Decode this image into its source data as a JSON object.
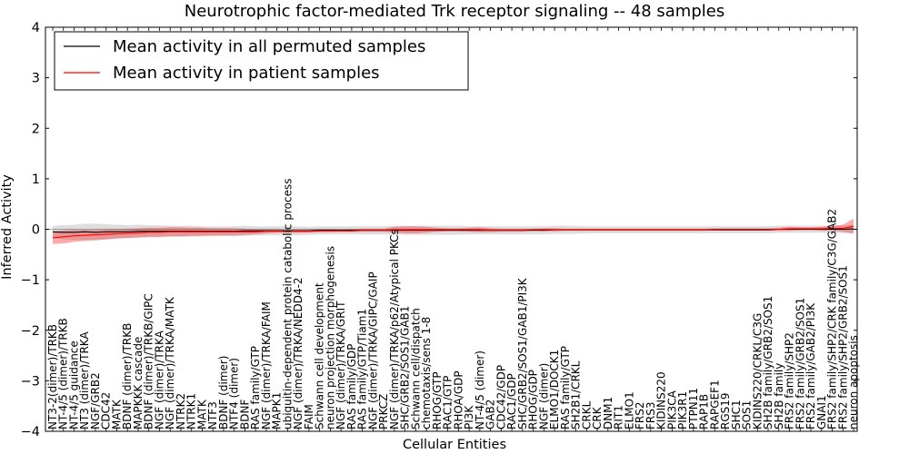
{
  "chart_data": {
    "type": "line",
    "title": "Neurotrophic factor-mediated Trk receptor signaling -- 48 samples",
    "xlabel": "Cellular Entities",
    "ylabel": "Inferred Activity",
    "ylim": [
      -4,
      4
    ],
    "yticks": [
      -4,
      -3,
      -2,
      -1,
      0,
      1,
      2,
      3,
      4
    ],
    "legend": {
      "placement": "top-left"
    },
    "categories": [
      "NT3-2(dimer)/TRKB",
      "NT-4/5 (dimer)/TRKB",
      "NT-4/5 guidance",
      "NT3 (dimer)/TRKA",
      "NGF/GRB2",
      "CDC42",
      "MATK",
      "BDNF (dimer)/TRKB",
      "MAPKKK cascade",
      "BDNF (dimer)/TRKB/GIPC",
      "NGF (dimer)/TRKA",
      "NGF (dimer)/TRKA/MATK",
      "NTRK2",
      "NTRK1",
      "MATK",
      "NTF3",
      "BDNF (dimer)",
      "NTF4 (dimer)",
      "BDNF",
      "RAS family/GTP",
      "NGF (dimer)/TRKA/FAIM",
      "MAPK1",
      "ubiquitin-dependent protein catabolic process",
      "NGF (dimer)/TRKA/NEDD4-2",
      "FAIM",
      "Schwann cell development",
      "neuron projection morphogenesis",
      "NGF (dimer)/TRKA/GRIT",
      "RAS family/GDP",
      "RAS family/GTP/Tiam1",
      "NGF (dimer)/TRKA/GIPC/GAIP",
      "PRKCZ",
      "NGF (dimer)/TRKA/p62/Atypical PKCs",
      "SHC/GRB2/SOS1/GAB1",
      "Schwann cell/dispatch",
      "chemotaxis/sens 1-8",
      "RHOG/GTP",
      "RAC1/GTP",
      "RHOA/GDP",
      "PI3K",
      "NT-4/5 (dimer)",
      "GAB2",
      "CDC42/GDP",
      "RAC1/GDP",
      "SHC/GRB2/SOS1/GAB1/PI3K",
      "RHOG/GDP",
      "NGF (dimer)",
      "ELMO1/DOCK1",
      "RAS family/GTP",
      "SH2B1/CRKL",
      "CRKL",
      "CRK",
      "DNM1",
      "RIT1",
      "ELMO1",
      "FRS2",
      "FRS3",
      "KIDINS220",
      "PIK3CA",
      "PIK3R1",
      "PTPN11",
      "RAP1B",
      "RAPGEF1",
      "RGS19",
      "SHC1",
      "SOS1",
      "KIDINS220/CRKL/C3G",
      "SH2B family/GRB2/SOS1",
      "SH2B family",
      "FRS2 family/SHP2",
      "FRS2 family/GRB2/SOS1",
      "FRS2 family/GAB2/PI3K",
      "GNAI1",
      "FRS2 family/SHP2/CRK family/C3G/GAB2",
      "FRS2 family/SHP2/GRB2/SOS1",
      "neuron apoptosis"
    ],
    "series": [
      {
        "name": "Mean activity in all permuted samples",
        "color": "#000000",
        "values": [
          -0.05,
          -0.06,
          -0.06,
          -0.05,
          -0.06,
          -0.05,
          -0.05,
          -0.05,
          -0.04,
          -0.04,
          -0.04,
          -0.04,
          -0.04,
          -0.04,
          -0.04,
          -0.04,
          -0.04,
          -0.04,
          -0.03,
          -0.03,
          -0.03,
          -0.03,
          -0.03,
          -0.03,
          -0.03,
          -0.02,
          -0.02,
          -0.02,
          -0.02,
          -0.02,
          -0.02,
          -0.02,
          -0.02,
          -0.02,
          -0.02,
          -0.02,
          -0.02,
          -0.02,
          -0.02,
          -0.02,
          -0.02,
          -0.02,
          -0.02,
          -0.02,
          -0.02,
          -0.02,
          -0.02,
          -0.01,
          -0.01,
          -0.01,
          -0.01,
          -0.01,
          -0.01,
          -0.01,
          -0.01,
          -0.01,
          -0.01,
          -0.01,
          -0.01,
          -0.01,
          -0.01,
          -0.01,
          -0.01,
          -0.01,
          -0.01,
          -0.01,
          -0.01,
          -0.01,
          0.0,
          0.0,
          0.0,
          0.0,
          0.0,
          0.0,
          0.0,
          0.01
        ],
        "band": [
          0.12,
          0.14,
          0.15,
          0.16,
          0.17,
          0.15,
          0.14,
          0.13,
          0.13,
          0.12,
          0.12,
          0.11,
          0.11,
          0.11,
          0.1,
          0.1,
          0.1,
          0.1,
          0.1,
          0.09,
          0.09,
          0.09,
          0.09,
          0.09,
          0.08,
          0.08,
          0.08,
          0.08,
          0.08,
          0.08,
          0.08,
          0.08,
          0.09,
          0.09,
          0.09,
          0.09,
          0.09,
          0.09,
          0.09,
          0.08,
          0.08,
          0.08,
          0.08,
          0.08,
          0.08,
          0.08,
          0.08,
          0.08,
          0.08,
          0.08,
          0.07,
          0.07,
          0.07,
          0.07,
          0.07,
          0.07,
          0.07,
          0.07,
          0.07,
          0.07,
          0.07,
          0.07,
          0.07,
          0.07,
          0.07,
          0.07,
          0.07,
          0.07,
          0.07,
          0.07,
          0.07,
          0.07,
          0.07,
          0.07,
          0.08,
          0.08
        ]
      },
      {
        "name": "Mean activity in patient samples",
        "color": "#ff0000",
        "values": [
          -0.17,
          -0.15,
          -0.13,
          -0.12,
          -0.11,
          -0.1,
          -0.09,
          -0.08,
          -0.07,
          -0.06,
          -0.06,
          -0.05,
          -0.05,
          -0.05,
          -0.05,
          -0.05,
          -0.05,
          -0.05,
          -0.05,
          -0.05,
          -0.04,
          -0.04,
          -0.04,
          -0.04,
          -0.04,
          -0.03,
          -0.03,
          -0.03,
          -0.03,
          -0.02,
          -0.02,
          -0.02,
          -0.01,
          -0.01,
          -0.01,
          -0.01,
          -0.01,
          -0.01,
          -0.01,
          -0.01,
          -0.01,
          -0.02,
          -0.02,
          -0.02,
          -0.02,
          -0.01,
          -0.01,
          -0.01,
          -0.01,
          -0.01,
          -0.01,
          -0.01,
          -0.01,
          -0.01,
          -0.01,
          -0.01,
          -0.01,
          -0.01,
          -0.01,
          -0.01,
          -0.01,
          -0.01,
          0.0,
          0.0,
          0.0,
          0.0,
          0.0,
          0.0,
          0.0,
          0.01,
          0.01,
          0.01,
          0.01,
          0.02,
          0.02,
          0.06
        ],
        "band": [
          0.12,
          0.13,
          0.12,
          0.11,
          0.1,
          0.1,
          0.09,
          0.09,
          0.09,
          0.09,
          0.09,
          0.09,
          0.09,
          0.08,
          0.08,
          0.07,
          0.07,
          0.07,
          0.06,
          0.05,
          0.04,
          0.03,
          0.03,
          0.03,
          0.03,
          0.03,
          0.03,
          0.02,
          0.03,
          0.03,
          0.03,
          0.03,
          0.06,
          0.07,
          0.07,
          0.06,
          0.04,
          0.03,
          0.03,
          0.04,
          0.05,
          0.04,
          0.03,
          0.03,
          0.03,
          0.02,
          0.03,
          0.03,
          0.02,
          0.02,
          0.02,
          0.02,
          0.02,
          0.02,
          0.02,
          0.02,
          0.02,
          0.02,
          0.02,
          0.02,
          0.02,
          0.02,
          0.02,
          0.02,
          0.02,
          0.02,
          0.02,
          0.02,
          0.03,
          0.04,
          0.03,
          0.03,
          0.04,
          0.05,
          0.07,
          0.15
        ]
      }
    ]
  }
}
